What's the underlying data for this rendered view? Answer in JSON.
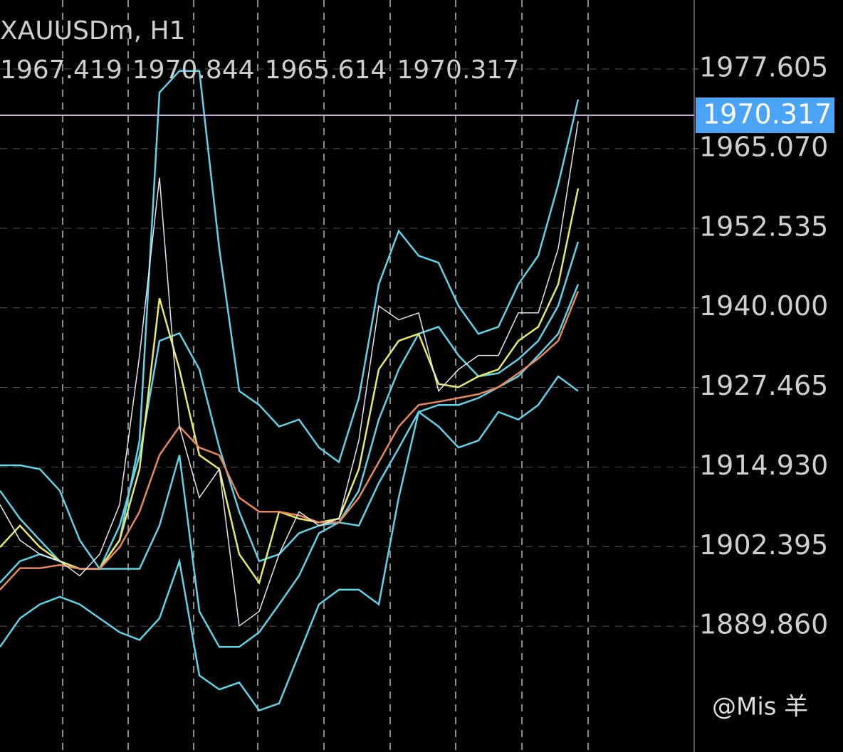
{
  "chart_data": {
    "type": "line",
    "title": "XAUUSDm, H1",
    "ohlc": [
      1967.419,
      1970.844,
      1965.614,
      1970.317
    ],
    "last_price": 1970.317,
    "watermark": "@Mis 羊",
    "ylim": [
      1870.05,
      1988.47
    ],
    "yticks": [
      1977.605,
      {
        "value": 1965.07,
        "label": "1965.070"
      },
      1952.535,
      {
        "value": 1940,
        "label": "1940.000"
      },
      1927.465,
      {
        "value": 1914.93,
        "label": "1914.930"
      },
      1902.395,
      {
        "value": 1889.86,
        "label": "1889.860"
      }
    ],
    "grid": true,
    "categories": [
      null,
      null,
      null,
      null,
      null,
      null,
      null,
      null,
      null,
      null,
      null,
      null,
      null,
      null,
      null,
      null,
      null,
      null,
      null,
      null,
      null,
      null,
      null,
      null,
      null,
      null,
      null,
      null,
      null,
      null
    ],
    "series": [
      {
        "color": "#5fd3e8",
        "values": [
          1915.2,
          1915.2,
          1914.6,
          1911.2,
          1903.4,
          1898.9,
          1903.4,
          1919.1,
          1973.9,
          1977.3,
          1977.3,
          1949.3,
          1926.9,
          1924.7,
          1921.3,
          1922.4,
          1918.0,
          1915.7,
          1925.8,
          1943.7,
          1952.1,
          1948.2,
          1947.1,
          1940.3,
          1935.9,
          1937.0,
          1943.7,
          1948.2,
          1959.4,
          1972.8
        ]
      },
      {
        "color": "#5fd3e8",
        "values": [
          1886.6,
          1891.1,
          1893.3,
          1894.5,
          1893.3,
          1891.1,
          1888.9,
          1887.7,
          1891.1,
          1900.1,
          1882.1,
          1879.9,
          1881.0,
          1876.6,
          1877.7,
          1885.5,
          1893.3,
          1895.6,
          1895.6,
          1893.3,
          1910.1,
          1923.6,
          1921.3,
          1918.0,
          1919.1,
          1923.6,
          1922.4,
          1924.7,
          1929.2,
          1926.9
        ]
      },
      {
        "color": "#5fd3e8",
        "values": [
          1911.2,
          1906.8,
          1903.4,
          1900.1,
          1898.9,
          1898.9,
          1905.7,
          1916.8,
          1934.8,
          1936.0,
          1930.3,
          1918.0,
          1907.9,
          1900.1,
          1901.2,
          1904.5,
          1905.7,
          1906.2,
          1911.2,
          1922.4,
          1930.3,
          1935.9,
          1937.0,
          1932.5,
          1929.2,
          1929.7,
          1931.9,
          1934.8,
          1940.3,
          1950.4
        ]
      },
      {
        "color": "#5fd3e8",
        "values": [
          1896.7,
          1900.1,
          1901.2,
          1900.1,
          1898.9,
          1898.9,
          1898.9,
          1898.9,
          1905.7,
          1916.8,
          1892.2,
          1886.6,
          1886.6,
          1888.9,
          1893.3,
          1897.8,
          1904.5,
          1906.2,
          1905.7,
          1912.4,
          1917.9,
          1923.6,
          1924.7,
          1924.7,
          1925.8,
          1927.5,
          1929.2,
          1932.5,
          1935.9,
          1943.7
        ]
      },
      {
        "color": "#e8e86a",
        "values": [
          1902.3,
          1905.7,
          1902.3,
          1900.1,
          1898.9,
          1898.9,
          1903.4,
          1914.6,
          1941.5,
          1930.3,
          1916.8,
          1914.6,
          1901.2,
          1896.7,
          1907.9,
          1906.8,
          1906.2,
          1906.8,
          1914.6,
          1930.3,
          1934.8,
          1935.9,
          1928.0,
          1927.5,
          1929.2,
          1930.3,
          1934.8,
          1937.0,
          1943.7,
          1958.8
        ]
      },
      {
        "color": "#e8885a",
        "values": [
          1895.6,
          1899.0,
          1899.0,
          1899.5,
          1898.9,
          1898.9,
          1902.3,
          1907.9,
          1916.8,
          1921.3,
          1918.0,
          1916.8,
          1910.1,
          1907.9,
          1907.9,
          1907.3,
          1906.2,
          1906.2,
          1910.1,
          1915.7,
          1921.3,
          1924.7,
          1925.2,
          1925.8,
          1926.4,
          1927.5,
          1929.7,
          1932.0,
          1934.8,
          1942.6
        ]
      },
      {
        "color": "#e6e6f0",
        "values": [
          1909.0,
          1903.4,
          1901.2,
          1900.1,
          1897.8,
          1901.2,
          1909.0,
          1932.5,
          1960.5,
          1921.3,
          1910.1,
          1914.6,
          1889.9,
          1892.2,
          1901.2,
          1907.9,
          1905.7,
          1906.8,
          1919.1,
          1940.3,
          1938.1,
          1939.2,
          1926.9,
          1930.3,
          1932.5,
          1932.5,
          1939.2,
          1939.2,
          1949.3,
          1969.4
        ]
      }
    ]
  }
}
